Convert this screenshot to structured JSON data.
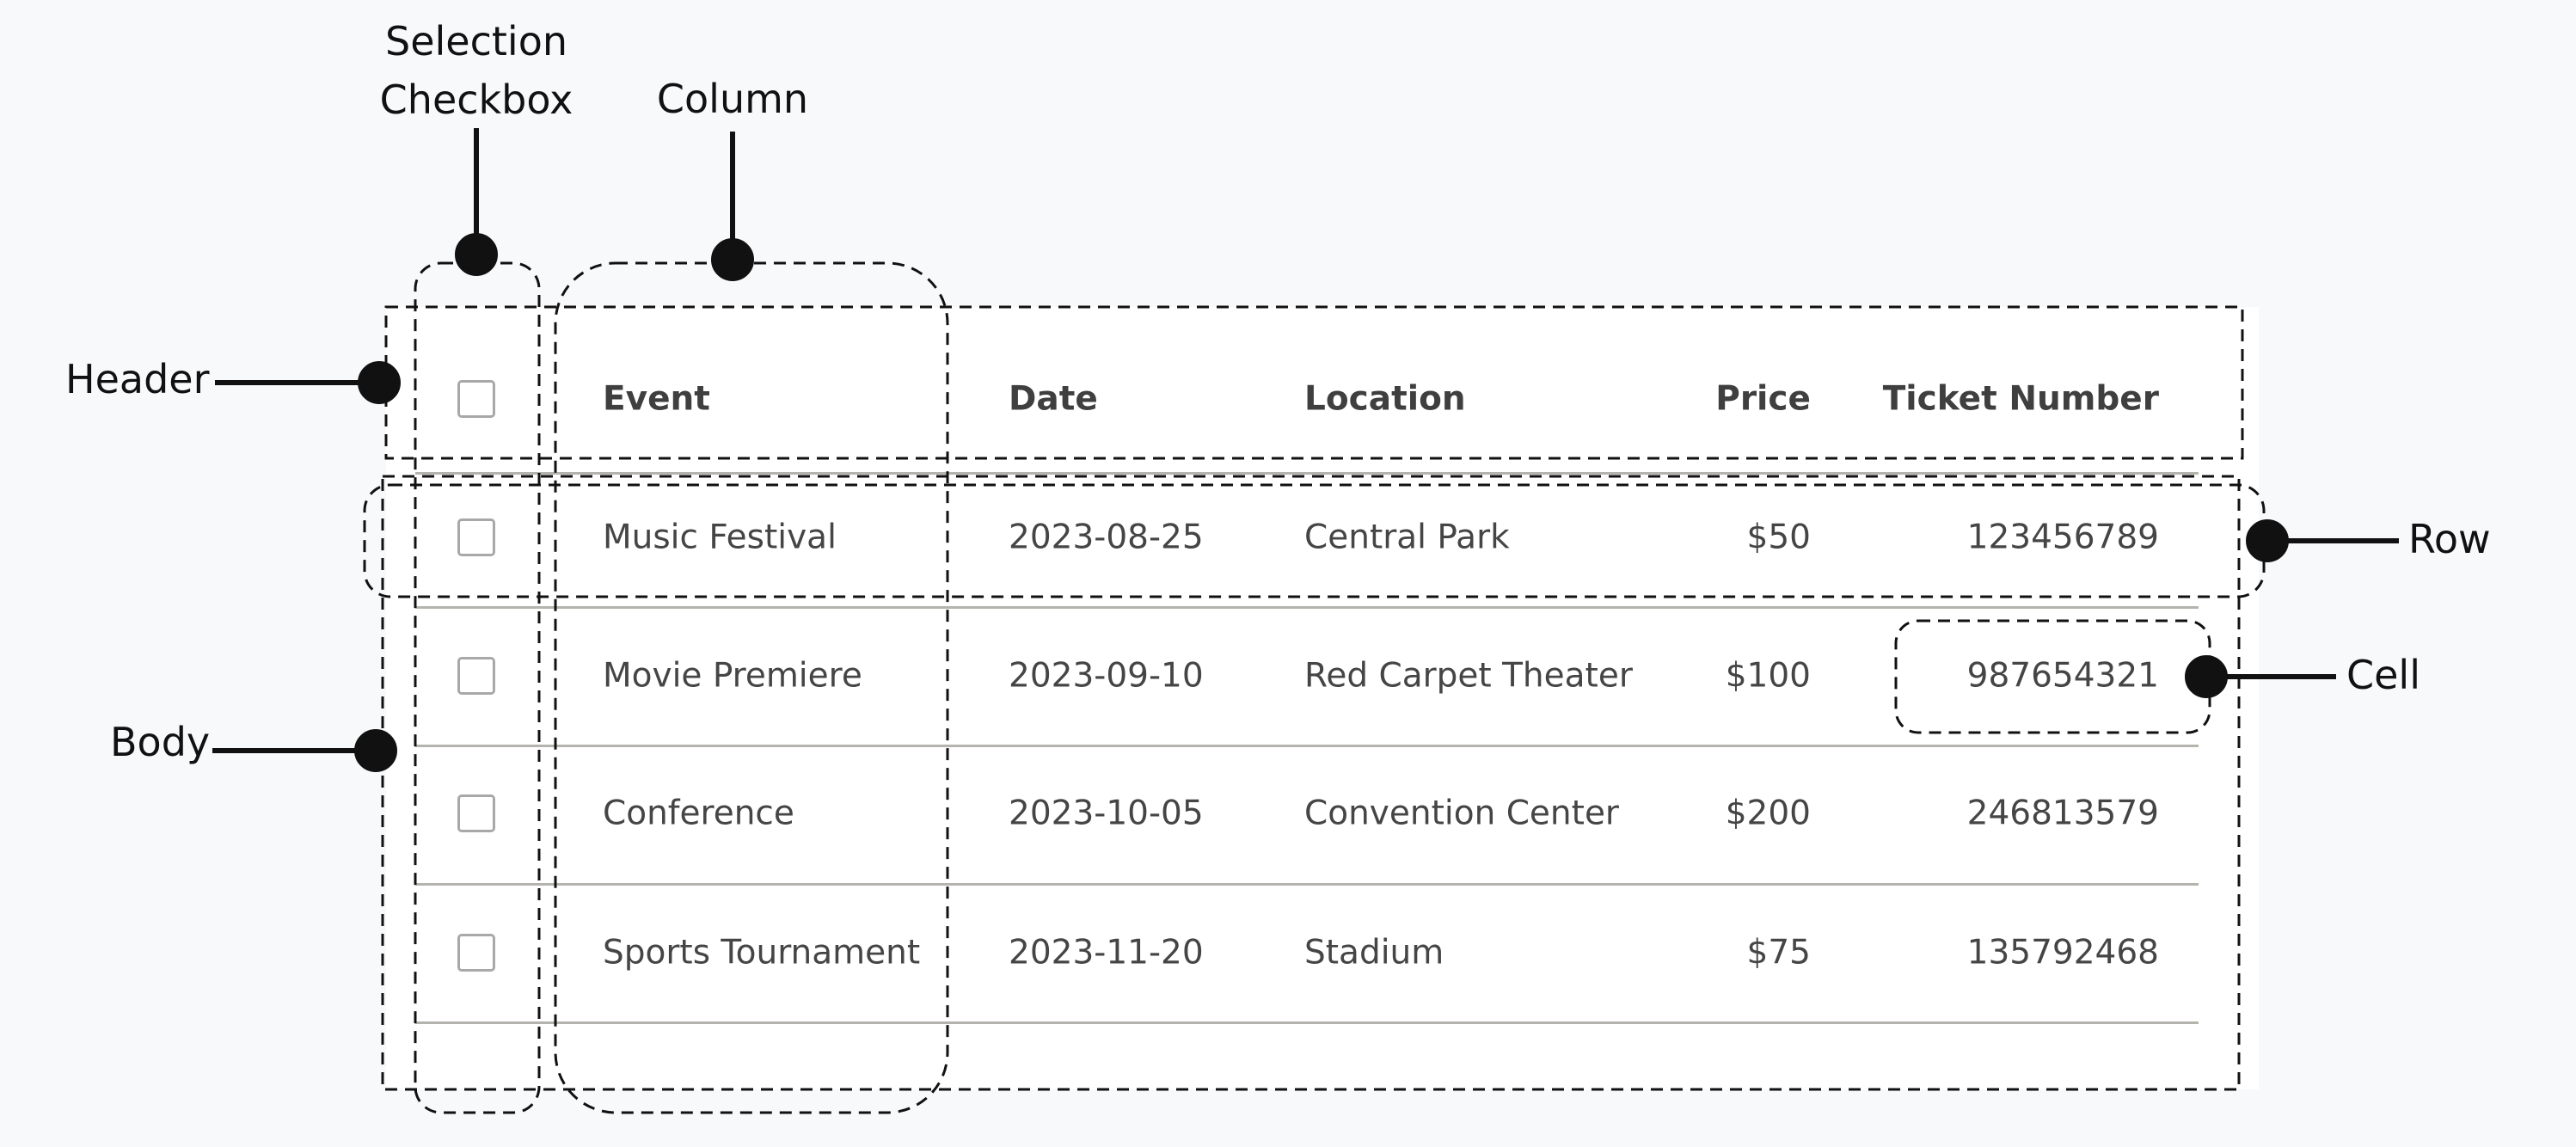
{
  "annotations": {
    "selection_checkbox": [
      "Selection",
      "Checkbox"
    ],
    "column": "Column",
    "header": "Header",
    "body": "Body",
    "row": "Row",
    "cell": "Cell"
  },
  "table": {
    "columns": [
      "Event",
      "Date",
      "Location",
      "Price",
      "Ticket Number"
    ],
    "rows": [
      [
        "Music Festival",
        "2023-08-25",
        "Central Park",
        "$50",
        "123456789"
      ],
      [
        "Movie Premiere",
        "2023-09-10",
        "Red Carpet Theater",
        "$100",
        "987654321"
      ],
      [
        "Conference",
        "2023-10-05",
        "Convention Center",
        "$200",
        "246813579"
      ],
      [
        "Sports Tournament",
        "2023-11-20",
        "Stadium",
        "$75",
        "135792468"
      ]
    ]
  },
  "colors": {
    "background": "#f8f9fb",
    "annotation": "#111111",
    "divider": "#b5b3ad"
  }
}
